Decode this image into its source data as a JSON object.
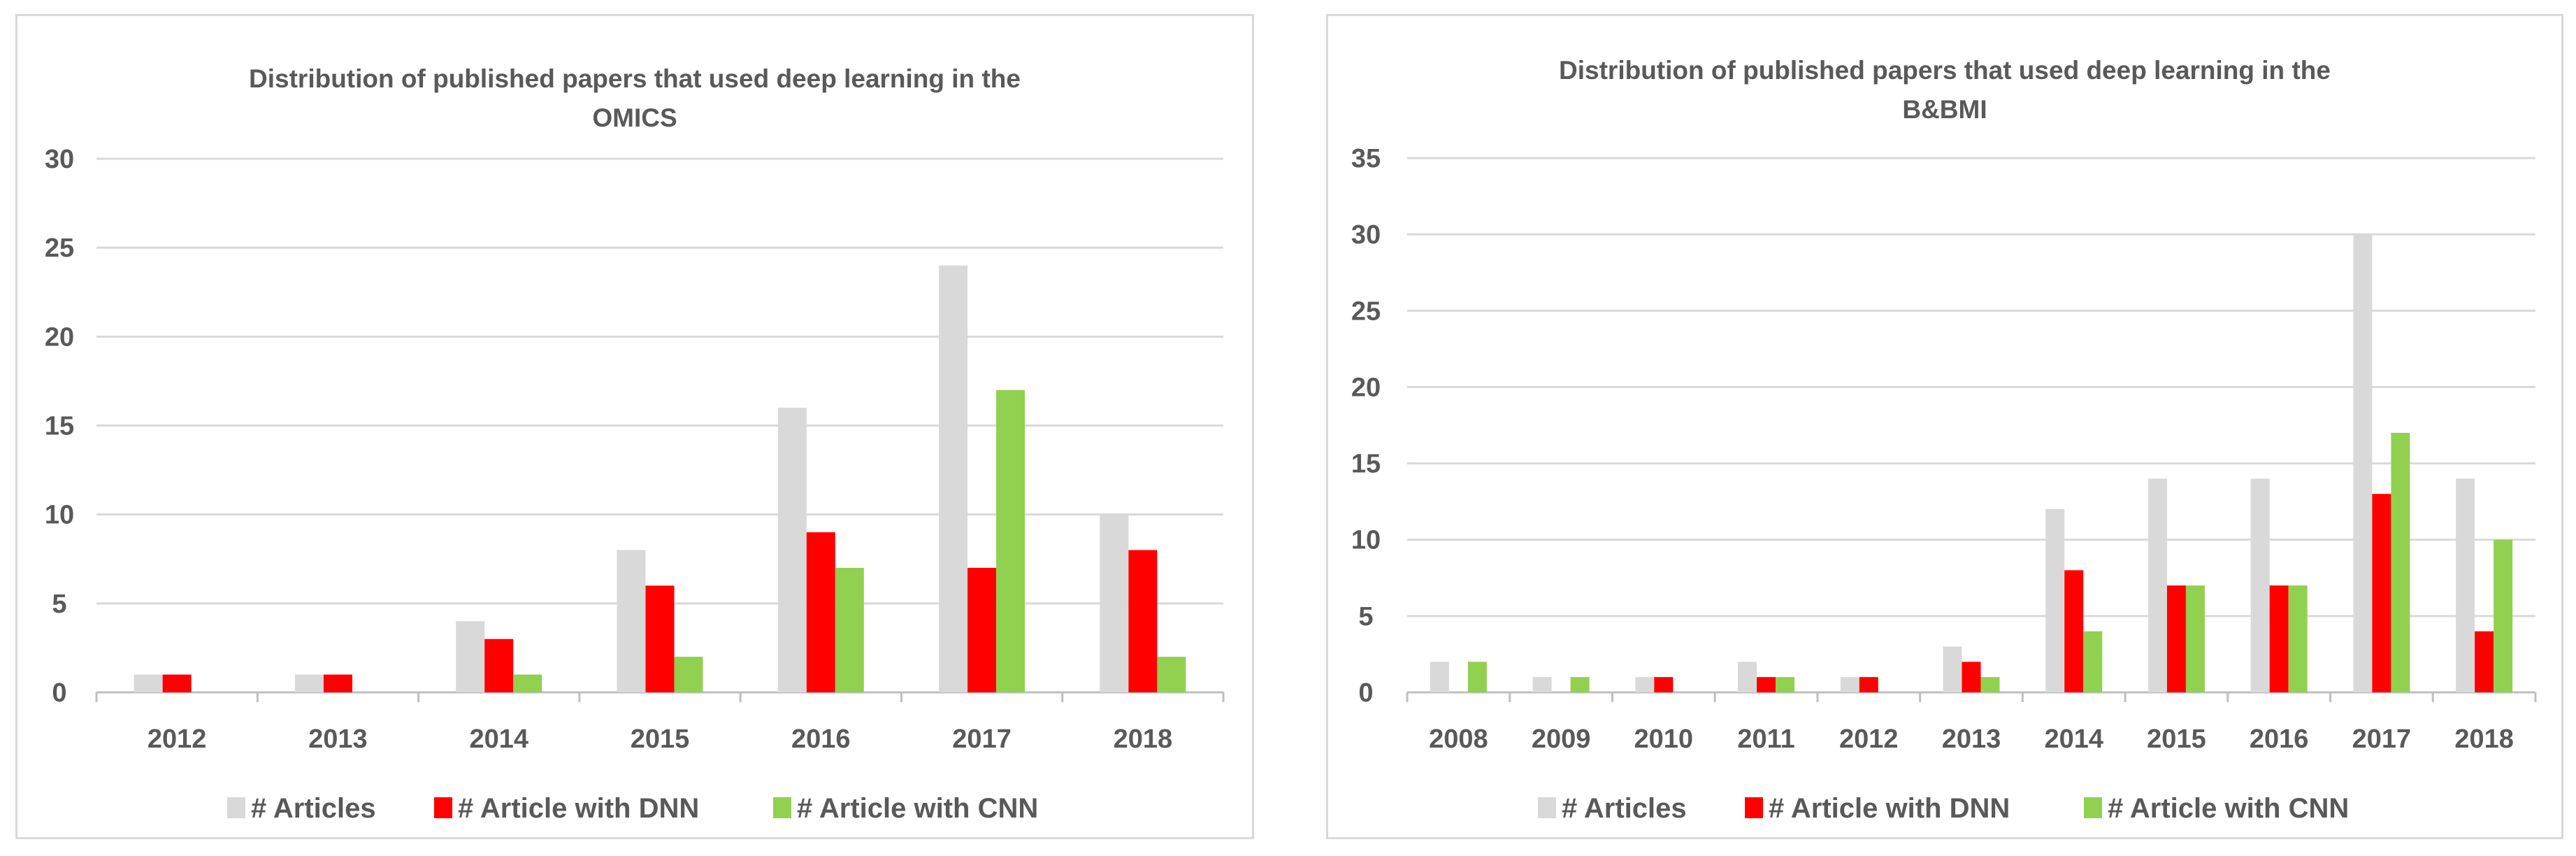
{
  "colors": {
    "articles": "#d9d9d9",
    "dnn": "#ff0000",
    "cnn": "#92d050"
  },
  "chart_data": [
    {
      "type": "bar",
      "title_line1": "Distribution of published papers that used deep learning in the",
      "title_line2": "OMICS",
      "categories": [
        "2012",
        "2013",
        "2014",
        "2015",
        "2016",
        "2017",
        "2018"
      ],
      "series": [
        {
          "name": "# Articles",
          "values": [
            1,
            1,
            4,
            8,
            16,
            24,
            10
          ]
        },
        {
          "name": "# Article with DNN",
          "values": [
            1,
            1,
            3,
            6,
            9,
            7,
            8
          ]
        },
        {
          "name": "# Article with CNN",
          "values": [
            0,
            0,
            1,
            2,
            7,
            17,
            2
          ]
        }
      ],
      "ylim": [
        0,
        30
      ],
      "yticks": [
        0,
        5,
        10,
        15,
        20,
        25,
        30
      ],
      "grid": true,
      "legend_position": "bottom"
    },
    {
      "type": "bar",
      "title_line1": "Distribution of published papers that used deep learning in the",
      "title_line2": "B&BMI",
      "categories": [
        "2008",
        "2009",
        "2010",
        "2011",
        "2012",
        "2013",
        "2014",
        "2015",
        "2016",
        "2017",
        "2018"
      ],
      "series": [
        {
          "name": "# Articles",
          "values": [
            2,
            1,
            1,
            2,
            1,
            3,
            12,
            14,
            14,
            30,
            14
          ]
        },
        {
          "name": "# Article with DNN",
          "values": [
            0,
            0,
            1,
            1,
            1,
            2,
            8,
            7,
            7,
            13,
            4
          ]
        },
        {
          "name": "# Article with CNN",
          "values": [
            2,
            1,
            0,
            1,
            0,
            1,
            4,
            7,
            7,
            17,
            10
          ]
        }
      ],
      "ylim": [
        0,
        35
      ],
      "yticks": [
        0,
        5,
        10,
        15,
        20,
        25,
        30,
        35
      ],
      "grid": true,
      "legend_position": "bottom"
    }
  ]
}
